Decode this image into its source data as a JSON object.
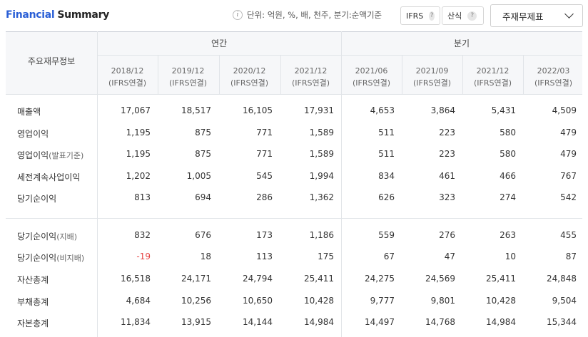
{
  "header": {
    "title_part1": "Financial",
    "title_part2": "Summary",
    "unit_text": "단위: 억원, %, 배, 천주, 분기:순액기준",
    "ifrs_label": "IFRS",
    "calc_label": "산식",
    "help_mark": "?",
    "select_value": "주재무제표"
  },
  "table": {
    "row_header": "주요재무정보",
    "group_annual": "연간",
    "group_quarter": "분기",
    "periods": [
      {
        "date": "2018/12",
        "basis": "(IFRS연결)"
      },
      {
        "date": "2019/12",
        "basis": "(IFRS연결)"
      },
      {
        "date": "2020/12",
        "basis": "(IFRS연결)"
      },
      {
        "date": "2021/12",
        "basis": "(IFRS연결)"
      },
      {
        "date": "2021/06",
        "basis": "(IFRS연결)"
      },
      {
        "date": "2021/09",
        "basis": "(IFRS연결)"
      },
      {
        "date": "2021/12",
        "basis": "(IFRS연결)"
      },
      {
        "date": "2022/03",
        "basis": "(IFRS연결)"
      }
    ],
    "rows": [
      {
        "label": "매출액",
        "sub": "",
        "values": [
          "17,067",
          "18,517",
          "16,105",
          "17,931",
          "4,653",
          "3,864",
          "5,431",
          "4,509"
        ]
      },
      {
        "label": "영업이익",
        "sub": "",
        "values": [
          "1,195",
          "875",
          "771",
          "1,589",
          "511",
          "223",
          "580",
          "479"
        ]
      },
      {
        "label": "영업이익",
        "sub": "(발표기준)",
        "values": [
          "1,195",
          "875",
          "771",
          "1,589",
          "511",
          "223",
          "580",
          "479"
        ]
      },
      {
        "label": "세전계속사업이익",
        "sub": "",
        "values": [
          "1,202",
          "1,005",
          "545",
          "1,994",
          "834",
          "461",
          "466",
          "767"
        ]
      },
      {
        "label": "당기순이익",
        "sub": "",
        "values": [
          "813",
          "694",
          "286",
          "1,362",
          "626",
          "323",
          "274",
          "542"
        ]
      },
      {
        "label": "당기순이익",
        "sub": "(지배)",
        "values": [
          "832",
          "676",
          "173",
          "1,186",
          "559",
          "276",
          "263",
          "455"
        ]
      },
      {
        "label": "당기순이익",
        "sub": "(비지배)",
        "values": [
          "-19",
          "18",
          "113",
          "175",
          "67",
          "47",
          "10",
          "87"
        ]
      },
      {
        "label": "자산총계",
        "sub": "",
        "values": [
          "16,518",
          "24,171",
          "24,794",
          "25,411",
          "24,275",
          "24,569",
          "25,411",
          "24,848"
        ]
      },
      {
        "label": "부채총계",
        "sub": "",
        "values": [
          "4,684",
          "10,256",
          "10,650",
          "10,428",
          "9,777",
          "9,801",
          "10,428",
          "9,504"
        ]
      },
      {
        "label": "자본총계",
        "sub": "",
        "values": [
          "11,834",
          "13,915",
          "14,144",
          "14,984",
          "14,497",
          "14,768",
          "14,984",
          "15,344"
        ]
      }
    ],
    "negative_color": "#e64545",
    "accent_color": "#2a5fd6"
  }
}
